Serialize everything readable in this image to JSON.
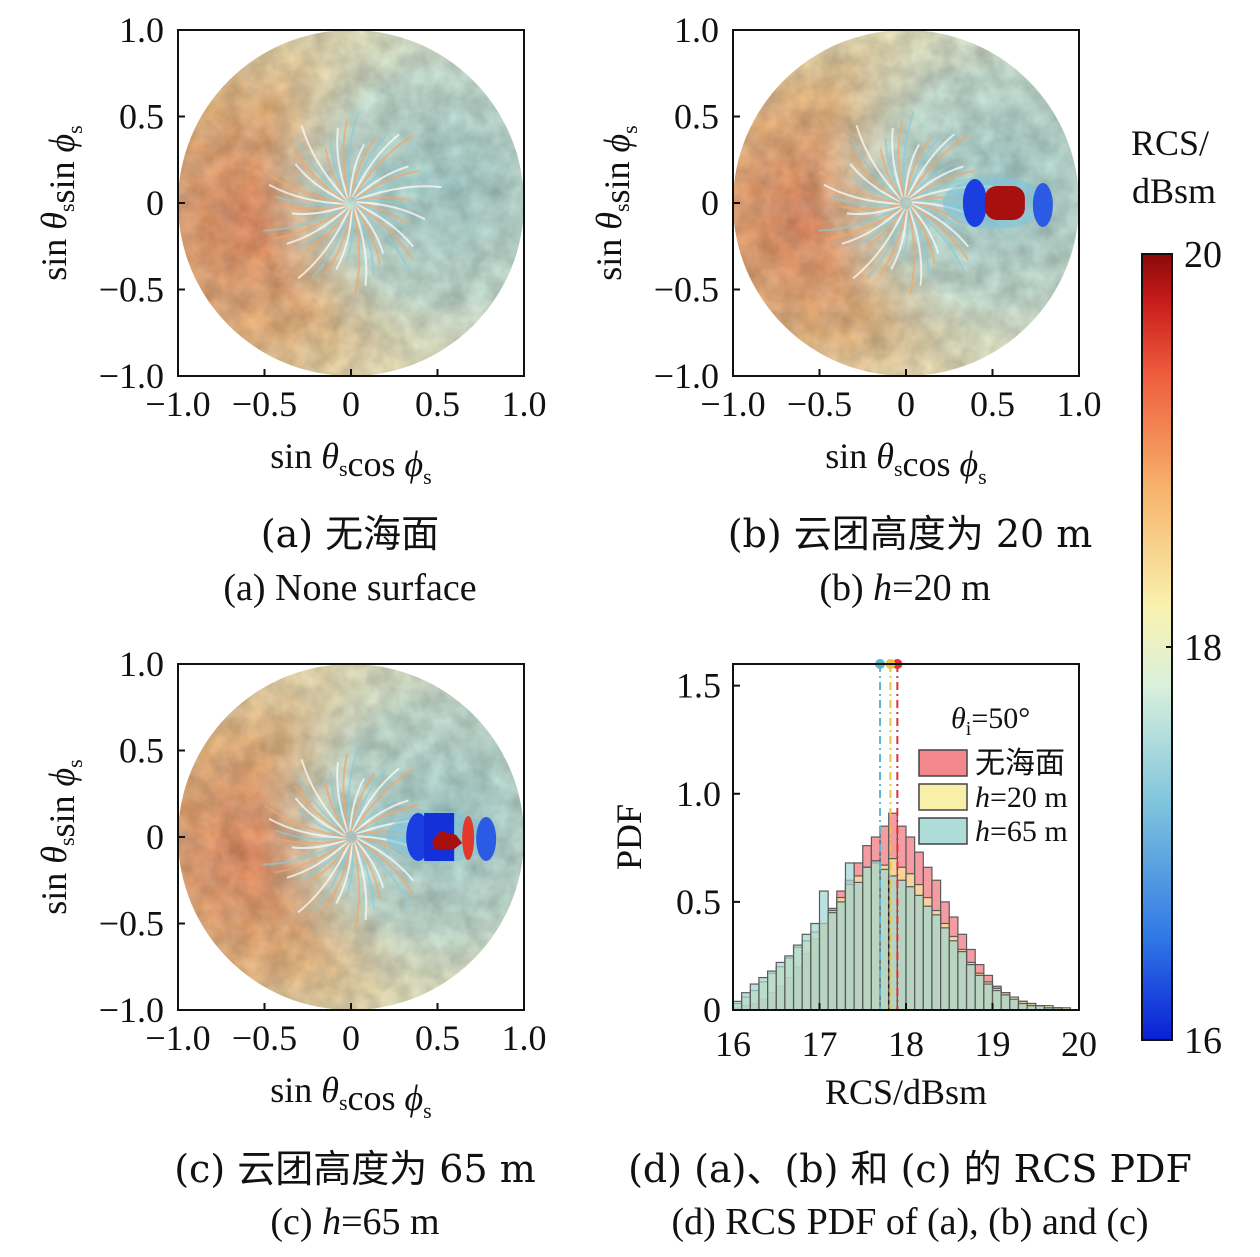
{
  "chart_data": [
    {
      "type": "heatmap",
      "panel": "a",
      "description_cn": "无海面",
      "caption_cn": "(a) 无海面",
      "caption_en": "(a) None surface",
      "xlabel": "sin θscos ϕs",
      "ylabel": "sin θssin ϕs",
      "xlim": [
        -1.0,
        1.0
      ],
      "ylim": [
        -1.0,
        1.0
      ],
      "xticks": [
        "−1.0",
        "−0.5",
        "0",
        "0.5",
        "1.0"
      ],
      "yticks": [
        "1.0",
        "0.5",
        "0",
        "−0.5",
        "−1.0"
      ],
      "hotspot": null
    },
    {
      "type": "heatmap",
      "panel": "b",
      "caption_cn": "(b) 云团高度为 20 m",
      "caption_en_prefix": "(b) ",
      "caption_en_var": "h",
      "caption_en_rest": "=20 m",
      "xlabel": "sin θscos ϕs",
      "ylabel": "sin θssin ϕs",
      "xlim": [
        -1.0,
        1.0
      ],
      "ylim": [
        -1.0,
        1.0
      ],
      "xticks": [
        "−1.0",
        "−0.5",
        "0",
        "0.5",
        "1.0"
      ],
      "yticks": [
        "1.0",
        "0.5",
        "0",
        "−0.5",
        "−1.0"
      ],
      "hotspot": {
        "x": 0.56,
        "y": 0.0
      }
    },
    {
      "type": "heatmap",
      "panel": "c",
      "caption_cn": "(c) 云团高度为 65 m",
      "caption_en_prefix": "(c) ",
      "caption_en_var": "h",
      "caption_en_rest": "=65 m",
      "xlabel": "sin θscos ϕs",
      "ylabel": "sin θssin ϕs",
      "xlim": [
        -1.0,
        1.0
      ],
      "ylim": [
        -1.0,
        1.0
      ],
      "xticks": [
        "−1.0",
        "−0.5",
        "0",
        "0.5",
        "1.0"
      ],
      "yticks": [
        "1.0",
        "0.5",
        "0",
        "−0.5",
        "−1.0"
      ],
      "hotspot": {
        "x": 0.55,
        "y": 0.0
      }
    },
    {
      "type": "bar",
      "panel": "d",
      "caption_cn": "(d) (a)、(b) 和 (c) 的 RCS PDF",
      "caption_en": "(d) RCS PDF of (a), (b) and (c)",
      "xlabel": "RCS/dBsm",
      "ylabel": "PDF",
      "xlim": [
        16,
        20
      ],
      "ylim": [
        0,
        1.6
      ],
      "xticks": [
        "16",
        "17",
        "18",
        "19",
        "20"
      ],
      "yticks": [
        "0",
        "0.5",
        "1.0",
        "1.5"
      ],
      "annotation": "θi=50°",
      "bin_edges_start": 16.0,
      "bin_width": 0.1,
      "series": [
        {
          "name": "无海面",
          "color": "#f0727a",
          "mean": 17.9,
          "values": [
            0.01,
            0.02,
            0.03,
            0.05,
            0.08,
            0.11,
            0.15,
            0.2,
            0.26,
            0.33,
            0.4,
            0.47,
            0.55,
            0.6,
            0.68,
            0.76,
            0.8,
            0.85,
            0.91,
            0.85,
            0.8,
            0.73,
            0.66,
            0.6,
            0.5,
            0.43,
            0.35,
            0.28,
            0.21,
            0.16,
            0.11,
            0.08,
            0.05,
            0.04,
            0.03,
            0.02,
            0.01,
            0.01,
            0.0,
            0.0
          ]
        },
        {
          "name_var": "h",
          "name_rest": "=20 m",
          "color": "#f7ed9a",
          "mean": 17.82,
          "values": [
            0.03,
            0.06,
            0.09,
            0.13,
            0.17,
            0.2,
            0.24,
            0.29,
            0.32,
            0.36,
            0.4,
            0.46,
            0.52,
            0.58,
            0.62,
            0.66,
            0.68,
            0.67,
            0.7,
            0.66,
            0.63,
            0.58,
            0.52,
            0.46,
            0.4,
            0.34,
            0.28,
            0.22,
            0.17,
            0.13,
            0.1,
            0.08,
            0.06,
            0.04,
            0.03,
            0.02,
            0.02,
            0.01,
            0.01,
            0.0
          ]
        },
        {
          "name_var": "h",
          "name_rest": "=65 m",
          "color": "#9fd6d2",
          "mean": 17.7,
          "values": [
            0.04,
            0.08,
            0.12,
            0.15,
            0.18,
            0.22,
            0.25,
            0.3,
            0.35,
            0.4,
            0.55,
            0.45,
            0.5,
            0.68,
            0.59,
            0.66,
            0.69,
            0.65,
            0.62,
            0.6,
            0.57,
            0.53,
            0.48,
            0.44,
            0.38,
            0.32,
            0.27,
            0.21,
            0.16,
            0.12,
            0.09,
            0.07,
            0.05,
            0.03,
            0.02,
            0.02,
            0.01,
            0.01,
            0.0,
            0.0
          ]
        }
      ]
    }
  ],
  "colorbar": {
    "title_line1": "RCS/",
    "title_line2": "dBsm",
    "min": 16,
    "max": 20,
    "ticks": [
      "20",
      "18",
      "16"
    ],
    "colors": [
      "#0a1fd6",
      "#2f78e6",
      "#7fc4dc",
      "#d9f0dc",
      "#f9f2b0",
      "#f7b46c",
      "#ee5a3c",
      "#c81b1b",
      "#8a0a0a"
    ]
  }
}
